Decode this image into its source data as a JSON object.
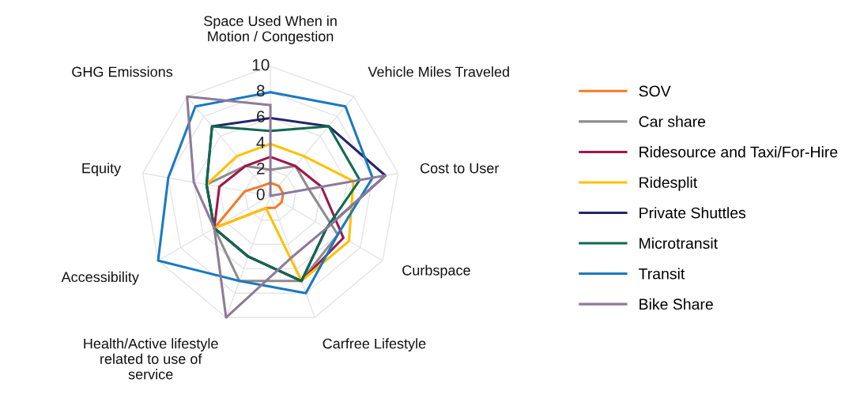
{
  "chart_data": {
    "type": "radar",
    "categories": [
      "Space Used When in\nMotion / Congestion",
      "Vehicle Miles Traveled",
      "Cost to User",
      "Curbspace",
      "Carfree Lifestyle",
      "Health/Active lifestyle\nrelated to use of\nservice",
      "Accessibility",
      "Equity",
      "GHG Emissions"
    ],
    "series": [
      {
        "name": "SOV",
        "color": "#f07c28",
        "values": [
          1,
          1,
          1,
          1,
          1,
          1,
          5,
          2,
          1
        ]
      },
      {
        "name": "Car share",
        "color": "#8c8c8c",
        "values": [
          2,
          3,
          3,
          6,
          7,
          7,
          5,
          5,
          3
        ]
      },
      {
        "name": "Ridesource and Taxi/For-Hire",
        "color": "#a0174a",
        "values": [
          3,
          3,
          4,
          6.5,
          7,
          5,
          5,
          4,
          3
        ]
      },
      {
        "name": "Ridesplit",
        "color": "#ffc000",
        "values": [
          4,
          4,
          6.5,
          7,
          7,
          1,
          5,
          5,
          4
        ]
      },
      {
        "name": "Private Shuttles",
        "color": "#24246e",
        "values": [
          6,
          7,
          9,
          5,
          7,
          5,
          5,
          5,
          7
        ]
      },
      {
        "name": "Microtransit",
        "color": "#0f6a4f",
        "values": [
          5,
          7,
          7,
          5,
          7,
          5,
          5,
          5,
          7
        ]
      },
      {
        "name": "Transit",
        "color": "#1a7ac0",
        "values": [
          8,
          9,
          8,
          6,
          8,
          7,
          10,
          8,
          9
        ]
      },
      {
        "name": "Bike Share",
        "color": "#8e7a9a",
        "values": [
          7,
          0,
          9,
          5,
          5,
          10,
          5,
          6,
          10
        ]
      }
    ],
    "ylim": [
      0,
      10
    ],
    "yticks": [
      0,
      2,
      4,
      6,
      8,
      10
    ],
    "grid": true,
    "legend": "right",
    "marker": "none",
    "line_style": "solid"
  }
}
